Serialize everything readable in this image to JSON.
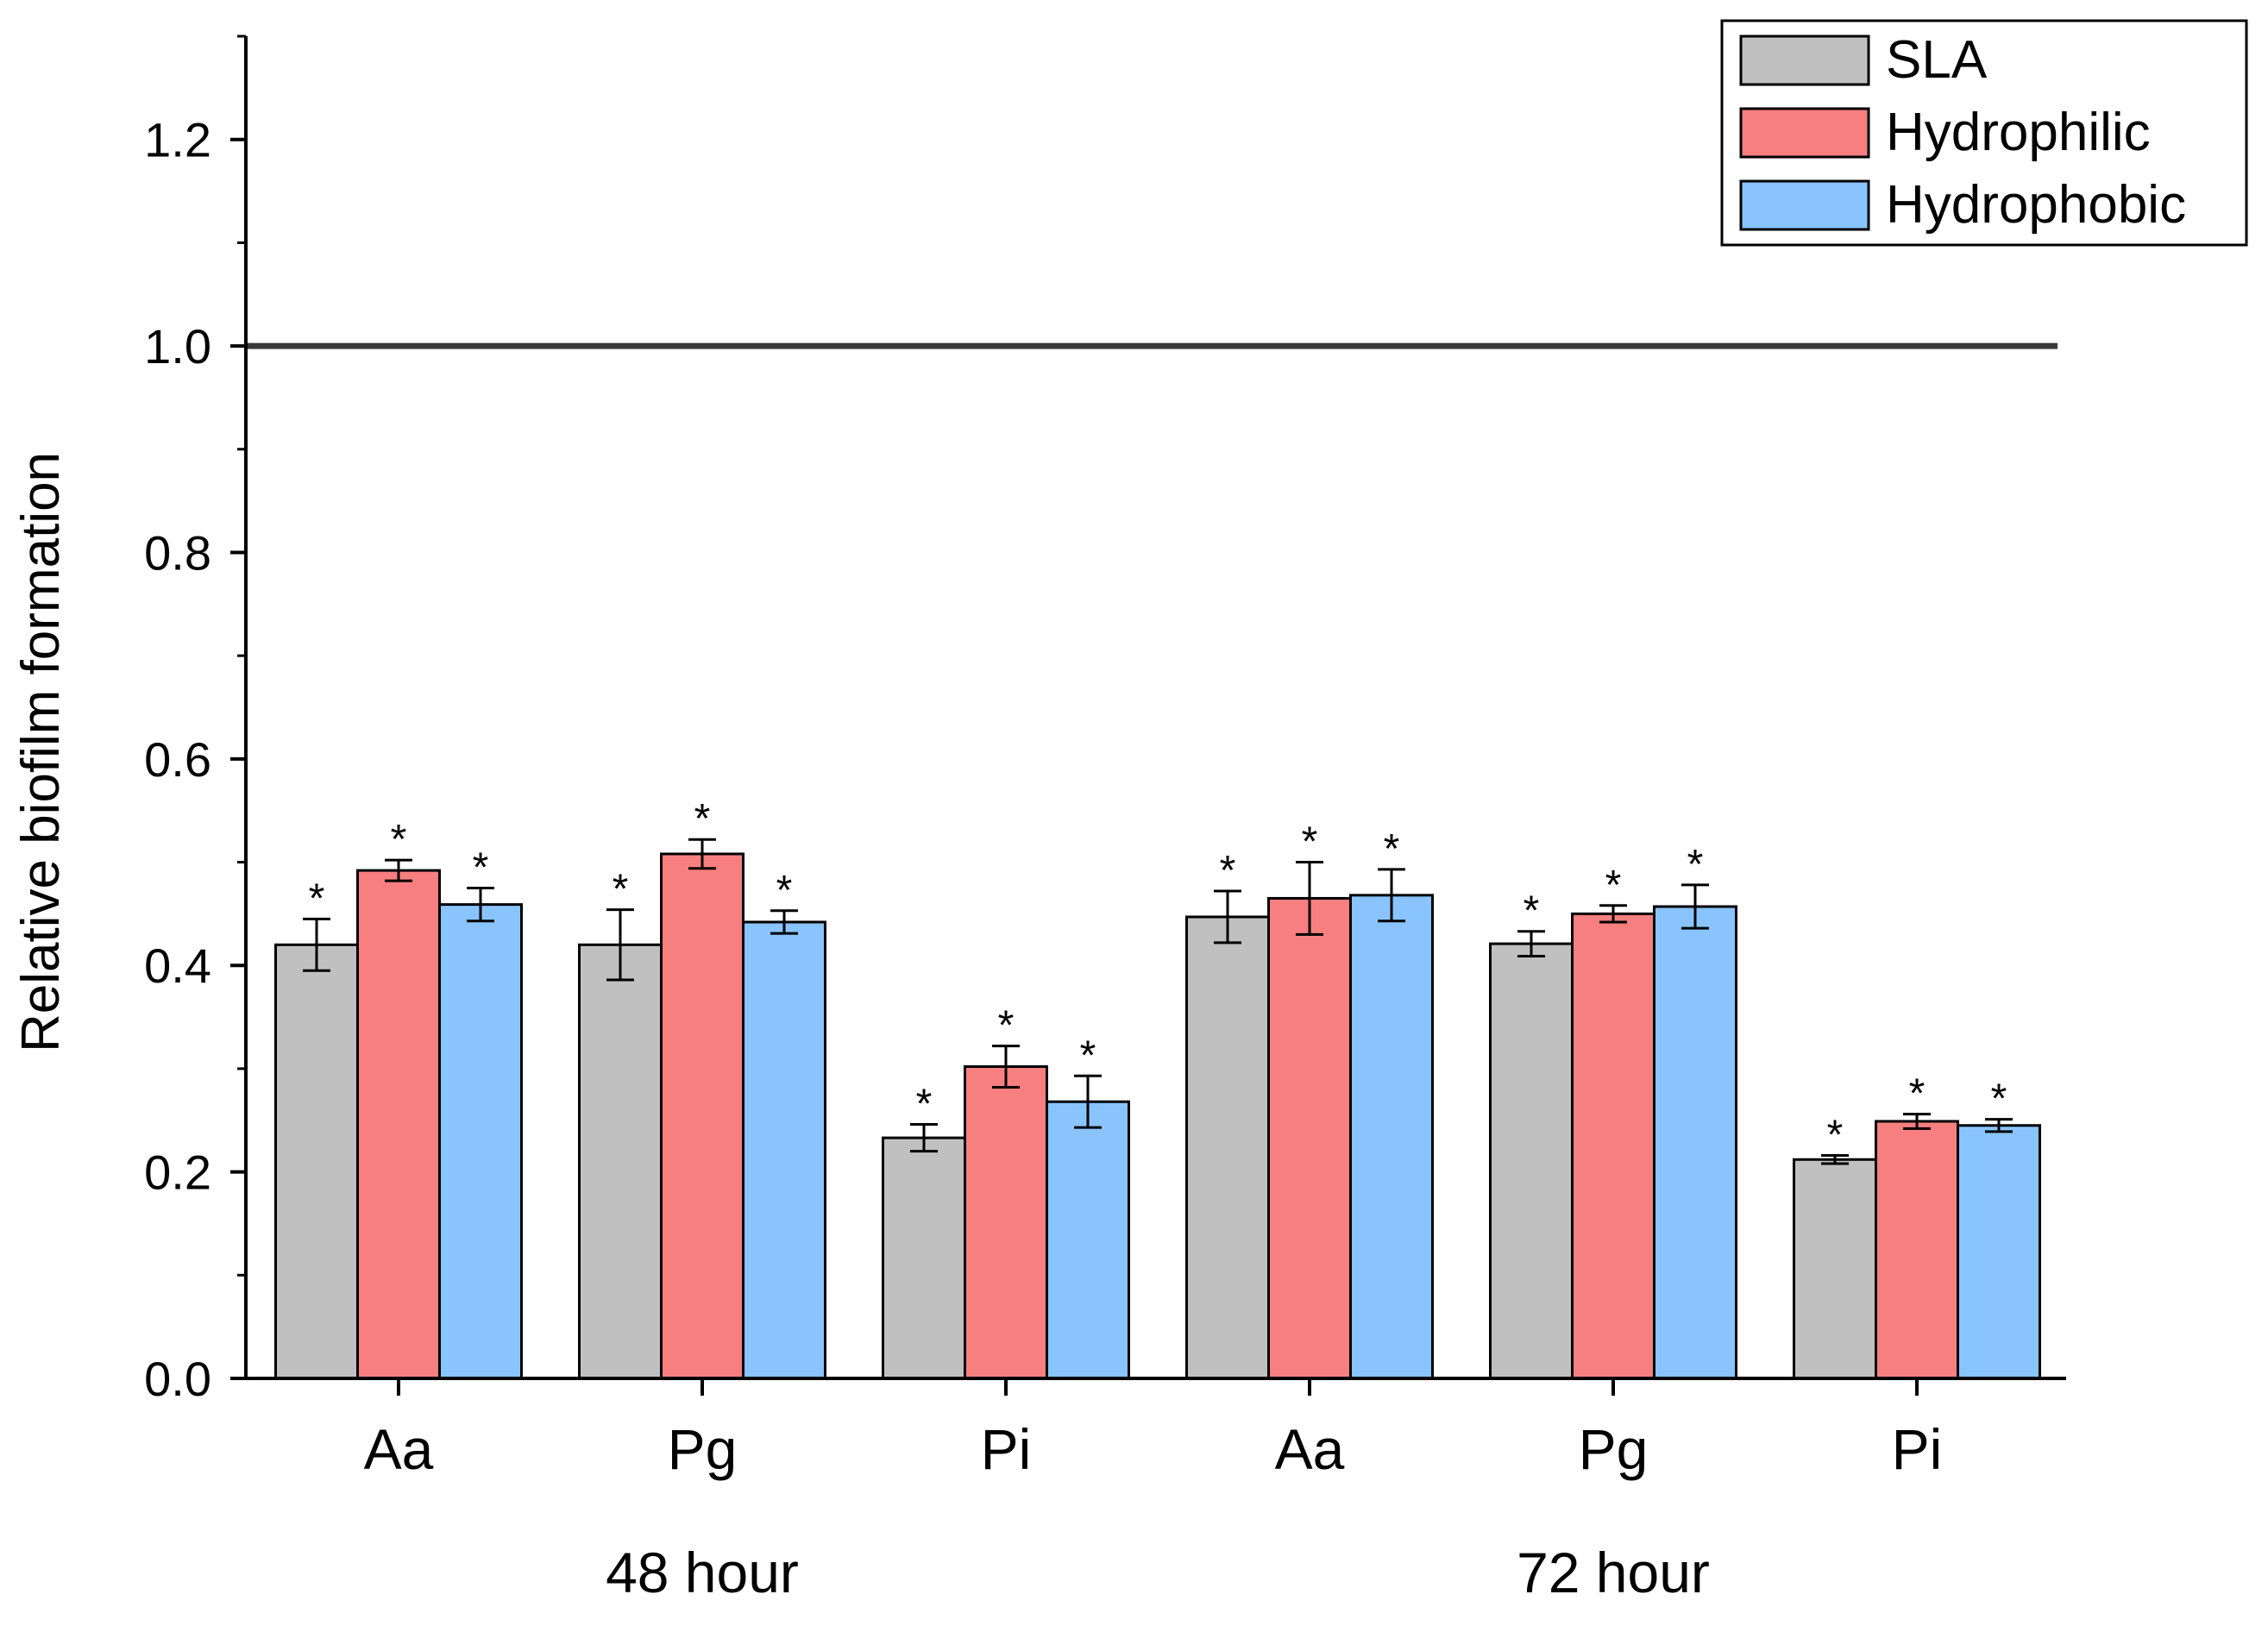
{
  "chart_data": {
    "type": "bar",
    "title": "",
    "ylabel": "Relative biofilm formation",
    "xlabel": "",
    "ylim": [
      0,
      1.3
    ],
    "y_ticks": [
      "0.0",
      "0.2",
      "0.4",
      "0.6",
      "0.8",
      "1.0",
      "1.2"
    ],
    "reference_line": 1.0,
    "categories": [
      "Aa",
      "Pg",
      "Pi",
      "Aa",
      "Pg",
      "Pi"
    ],
    "groups": [
      {
        "label": "48 hour",
        "categories": [
          "Aa",
          "Pg",
          "Pi"
        ]
      },
      {
        "label": "72 hour",
        "categories": [
          "Aa",
          "Pg",
          "Pi"
        ]
      }
    ],
    "significance_marker": "*",
    "series": [
      {
        "name": "SLA",
        "color": "#c0c0c0",
        "values": [
          0.42,
          0.42,
          0.233,
          0.447,
          0.421,
          0.212
        ],
        "errors": [
          0.025,
          0.034,
          0.013,
          0.025,
          0.012,
          0.004
        ]
      },
      {
        "name": "Hydrophilic",
        "color": "#f87f7f",
        "values": [
          0.492,
          0.508,
          0.302,
          0.465,
          0.45,
          0.249
        ],
        "errors": [
          0.01,
          0.014,
          0.02,
          0.035,
          0.008,
          0.007
        ]
      },
      {
        "name": "Hydrophobic",
        "color": "#89c4fe",
        "values": [
          0.459,
          0.442,
          0.268,
          0.468,
          0.457,
          0.245
        ],
        "errors": [
          0.016,
          0.011,
          0.025,
          0.025,
          0.021,
          0.006
        ]
      }
    ],
    "legend_position": "top-right"
  }
}
